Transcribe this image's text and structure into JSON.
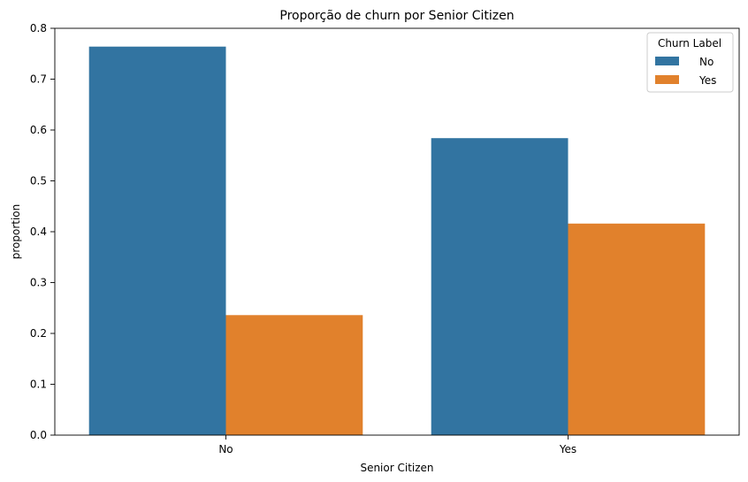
{
  "chart_data": {
    "type": "bar",
    "title": "Proporção de churn por Senior Citizen",
    "xlabel": "Senior Citizen",
    "ylabel": "proportion",
    "categories": [
      "No",
      "Yes"
    ],
    "series": [
      {
        "name": "No",
        "color": "#3274a1",
        "values": [
          0.764,
          0.584
        ]
      },
      {
        "name": "Yes",
        "color": "#e1812c",
        "values": [
          0.236,
          0.416
        ]
      }
    ],
    "ylim": [
      0,
      0.8
    ],
    "yticks": [
      "0.0",
      "0.1",
      "0.2",
      "0.3",
      "0.4",
      "0.5",
      "0.6",
      "0.7",
      "0.8"
    ],
    "legend": {
      "title": "Churn Label",
      "placement": "top-right"
    },
    "grid": false
  }
}
